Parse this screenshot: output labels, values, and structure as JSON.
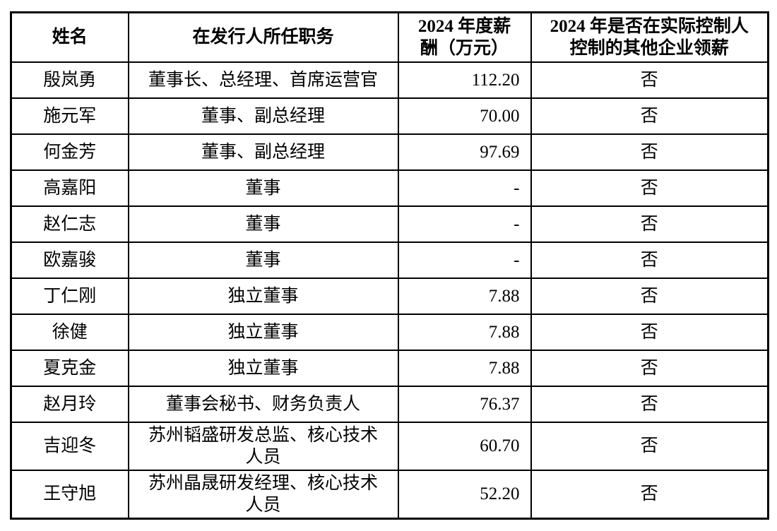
{
  "page": {
    "background_color": "#ffffff",
    "text_color": "#000000",
    "border_color": "#000000"
  },
  "table": {
    "headers": {
      "name": "姓名",
      "position": "在发行人所任职务",
      "salary": "2024 年度薪酬（万元）",
      "paid_elsewhere": "2024 年是否在实际控制人控制的其他企业领薪"
    },
    "rows": [
      {
        "name": "殷岚勇",
        "position": "董事长、总经理、首席运营官",
        "salary": "112.20",
        "paid_elsewhere": "否"
      },
      {
        "name": "施元军",
        "position": "董事、副总经理",
        "salary": "70.00",
        "paid_elsewhere": "否"
      },
      {
        "name": "何金芳",
        "position": "董事、副总经理",
        "salary": "97.69",
        "paid_elsewhere": "否"
      },
      {
        "name": "高嘉阳",
        "position": "董事",
        "salary": "-",
        "paid_elsewhere": "否"
      },
      {
        "name": "赵仁志",
        "position": "董事",
        "salary": "-",
        "paid_elsewhere": "否"
      },
      {
        "name": "欧嘉骏",
        "position": "董事",
        "salary": "-",
        "paid_elsewhere": "否"
      },
      {
        "name": "丁仁刚",
        "position": "独立董事",
        "salary": "7.88",
        "paid_elsewhere": "否"
      },
      {
        "name": "徐健",
        "position": "独立董事",
        "salary": "7.88",
        "paid_elsewhere": "否"
      },
      {
        "name": "夏克金",
        "position": "独立董事",
        "salary": "7.88",
        "paid_elsewhere": "否"
      },
      {
        "name": "赵月玲",
        "position": "董事会秘书、财务负责人",
        "salary": "76.37",
        "paid_elsewhere": "否"
      },
      {
        "name": "吉迎冬",
        "position": "苏州韬盛研发总监、核心技术人员",
        "salary": "60.70",
        "paid_elsewhere": "否"
      },
      {
        "name": "王守旭",
        "position": "苏州晶晟研发经理、核心技术人员",
        "salary": "52.20",
        "paid_elsewhere": "否"
      }
    ]
  }
}
